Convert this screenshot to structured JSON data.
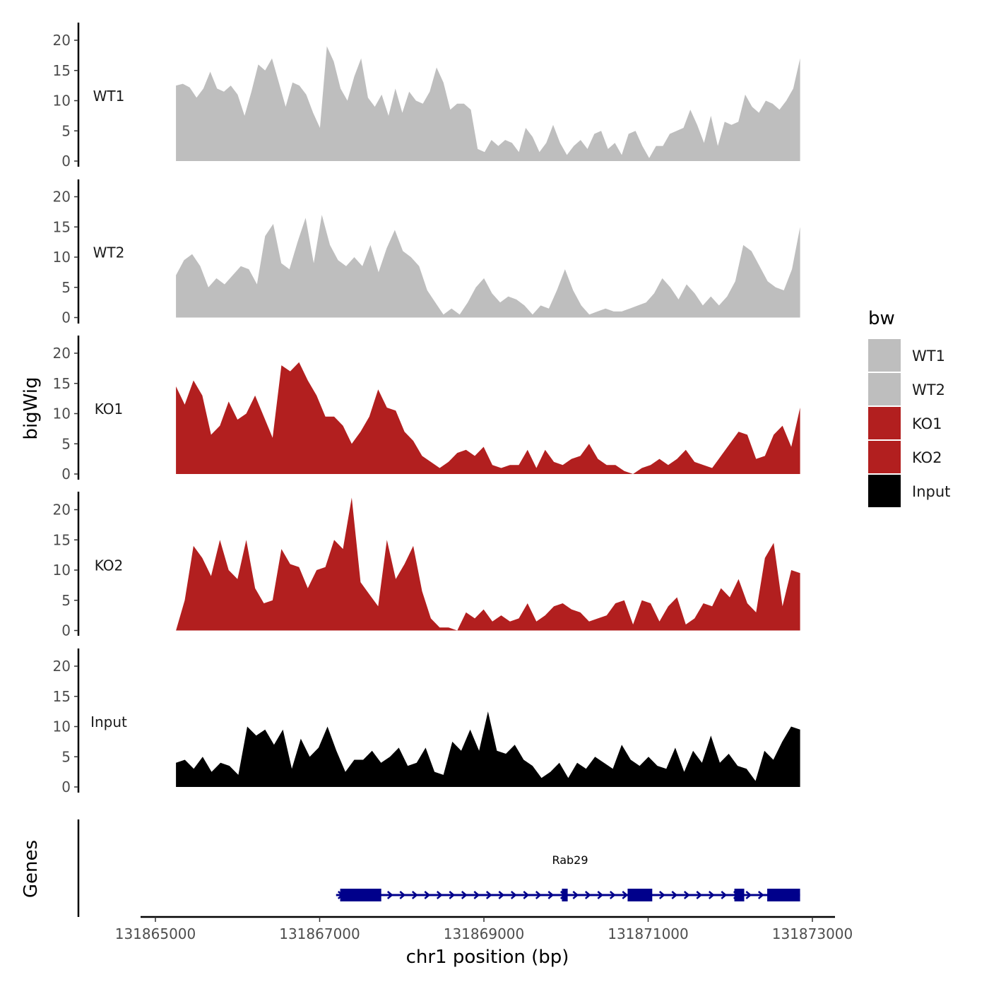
{
  "chart_data": {
    "type": "area",
    "ylabel": "bigWig",
    "xlabel": "chr1 position (bp)",
    "genes_label": "Genes",
    "x_range": [
      131865000,
      131873000
    ],
    "data_range": [
      131865250,
      131872850
    ],
    "ylim": [
      0,
      22
    ],
    "yticks": [
      0,
      5,
      10,
      15,
      20
    ],
    "xticks": [
      131865000,
      131867000,
      131869000,
      131871000,
      131873000
    ],
    "xtick_labels": [
      "131865000",
      "131867000",
      "131869000",
      "131871000",
      "131873000"
    ],
    "tracks": [
      {
        "name": "WT1",
        "color": "#bebebe",
        "values": [
          12.5,
          12.8,
          12.2,
          10.5,
          12.0,
          14.8,
          12.0,
          11.5,
          12.5,
          11.0,
          7.5,
          11.5,
          16.0,
          15.0,
          17.0,
          13.0,
          9.0,
          13.0,
          12.5,
          11.0,
          8.0,
          5.5,
          19.0,
          16.5,
          12.0,
          10.0,
          14.0,
          17.0,
          10.5,
          9.0,
          11.0,
          7.5,
          12.0,
          8.0,
          11.5,
          10.0,
          9.5,
          11.5,
          15.5,
          13.0,
          8.5,
          9.5,
          9.5,
          8.5,
          2.0,
          1.5,
          3.5,
          2.5,
          3.5,
          3.0,
          1.5,
          5.5,
          4.0,
          1.5,
          3.0,
          6.0,
          3.0,
          1.0,
          2.5,
          3.5,
          2.0,
          4.5,
          5.0,
          2.0,
          3.0,
          1.0,
          4.5,
          5.0,
          2.5,
          0.5,
          2.5,
          2.5,
          4.5,
          5.0,
          5.5,
          8.5,
          6.0,
          3.0,
          7.5,
          2.5,
          6.5,
          6.0,
          6.5,
          11.0,
          9.0,
          8.0,
          10.0,
          9.5,
          8.5,
          10.0,
          12.0,
          17.0
        ]
      },
      {
        "name": "WT2",
        "color": "#bebebe",
        "values": [
          7.0,
          9.5,
          10.5,
          8.5,
          5.0,
          6.5,
          5.5,
          7.0,
          8.5,
          8.0,
          5.5,
          13.5,
          15.5,
          9.0,
          8.0,
          12.5,
          16.5,
          9.0,
          17.0,
          12.0,
          9.5,
          8.5,
          10.0,
          8.5,
          12.0,
          7.5,
          11.5,
          14.5,
          11.0,
          10.0,
          8.5,
          4.5,
          2.5,
          0.5,
          1.5,
          0.5,
          2.5,
          5.0,
          6.5,
          4.0,
          2.5,
          3.5,
          3.0,
          2.0,
          0.5,
          2.0,
          1.5,
          4.5,
          8.0,
          4.5,
          2.0,
          0.5,
          1.0,
          1.5,
          1.0,
          1.0,
          1.5,
          2.0,
          2.5,
          4.0,
          6.5,
          5.0,
          3.0,
          5.5,
          4.0,
          2.0,
          3.5,
          2.0,
          3.5,
          6.0,
          12.0,
          11.0,
          8.5,
          6.0,
          5.0,
          4.5,
          8.0,
          15.0
        ]
      },
      {
        "name": "KO1",
        "color": "#b21f1f",
        "values": [
          14.5,
          11.5,
          15.5,
          13.0,
          6.5,
          8.0,
          12.0,
          9.0,
          10.0,
          13.0,
          9.5,
          6.0,
          18.0,
          17.0,
          18.5,
          15.5,
          13.0,
          9.5,
          9.5,
          8.0,
          5.0,
          7.0,
          9.5,
          14.0,
          11.0,
          10.5,
          7.0,
          5.5,
          3.0,
          2.0,
          1.0,
          2.0,
          3.5,
          4.0,
          3.0,
          4.5,
          1.5,
          1.0,
          1.5,
          1.5,
          4.0,
          1.0,
          4.0,
          2.0,
          1.5,
          2.5,
          3.0,
          5.0,
          2.5,
          1.5,
          1.5,
          0.5,
          0.0,
          1.0,
          1.5,
          2.5,
          1.5,
          2.5,
          4.0,
          2.0,
          1.5,
          1.0,
          3.0,
          5.0,
          7.0,
          6.5,
          2.5,
          3.0,
          6.5,
          8.0,
          4.5,
          11.0
        ]
      },
      {
        "name": "KO2",
        "color": "#b21f1f",
        "values": [
          0.0,
          5.0,
          14.0,
          12.0,
          9.0,
          15.0,
          10.0,
          8.5,
          15.0,
          7.0,
          4.5,
          5.0,
          13.5,
          11.0,
          10.5,
          7.0,
          10.0,
          10.5,
          15.0,
          13.5,
          22.0,
          8.0,
          6.0,
          4.0,
          15.0,
          8.5,
          11.0,
          14.0,
          6.5,
          2.0,
          0.5,
          0.5,
          0.0,
          3.0,
          2.0,
          3.5,
          1.5,
          2.5,
          1.5,
          2.0,
          4.5,
          1.5,
          2.5,
          4.0,
          4.5,
          3.5,
          3.0,
          1.5,
          2.0,
          2.5,
          4.5,
          5.0,
          1.0,
          5.0,
          4.5,
          1.5,
          4.0,
          5.5,
          1.0,
          2.0,
          4.5,
          4.0,
          7.0,
          5.5,
          8.5,
          4.5,
          3.0,
          12.0,
          14.5,
          4.0,
          10.0,
          9.5
        ]
      },
      {
        "name": "Input",
        "color": "#000000",
        "values": [
          4.0,
          4.5,
          3.0,
          5.0,
          2.5,
          4.0,
          3.5,
          2.0,
          10.0,
          8.5,
          9.5,
          7.0,
          9.5,
          3.0,
          8.0,
          5.0,
          6.5,
          10.0,
          6.0,
          2.5,
          4.5,
          4.5,
          6.0,
          4.0,
          5.0,
          6.5,
          3.5,
          4.0,
          6.5,
          2.5,
          2.0,
          7.5,
          6.0,
          9.5,
          6.0,
          12.5,
          6.0,
          5.5,
          7.0,
          4.5,
          3.5,
          1.5,
          2.5,
          4.0,
          1.5,
          4.0,
          3.0,
          5.0,
          4.0,
          3.0,
          7.0,
          4.5,
          3.5,
          5.0,
          3.5,
          3.0,
          6.5,
          2.5,
          6.0,
          4.0,
          8.5,
          4.0,
          5.5,
          3.5,
          3.0,
          1.0,
          6.0,
          4.5,
          7.5,
          10.0,
          9.5
        ]
      }
    ],
    "legend": {
      "title": "bw",
      "entries": [
        {
          "label": "WT1",
          "color": "#bebebe"
        },
        {
          "label": "WT2",
          "color": "#bebebe"
        },
        {
          "label": "KO1",
          "color": "#b21f1f"
        },
        {
          "label": "KO2",
          "color": "#b21f1f"
        },
        {
          "label": "Input",
          "color": "#000000"
        }
      ]
    },
    "gene": {
      "name": "Rab29",
      "color": "#00008b",
      "start": 131867200,
      "end": 131872850,
      "exons": [
        [
          131867250,
          131867750
        ],
        [
          131869950,
          131870020
        ],
        [
          131870750,
          131871050
        ],
        [
          131872050,
          131872170
        ],
        [
          131872450,
          131872850
        ]
      ]
    }
  }
}
